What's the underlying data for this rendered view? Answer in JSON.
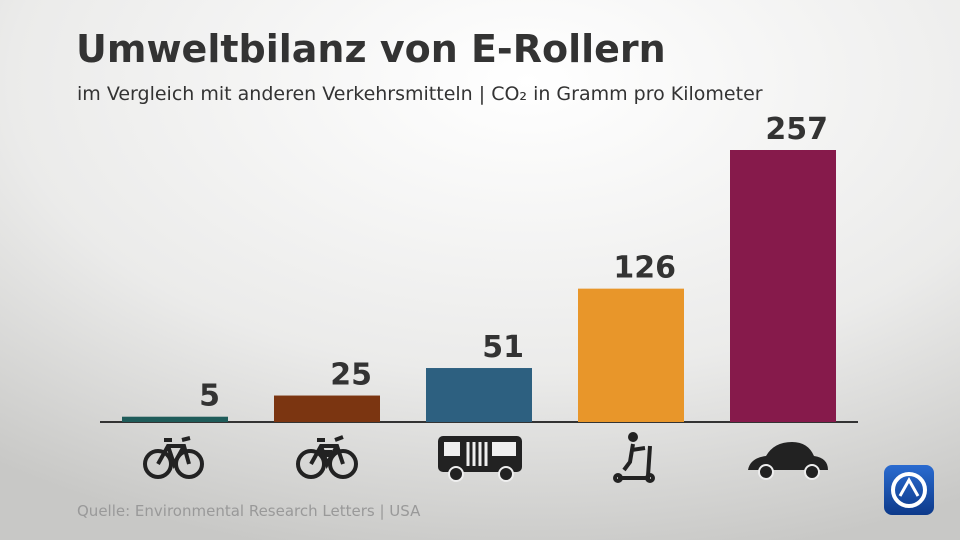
{
  "chart_data": {
    "type": "bar",
    "title": "Umweltbilanz von E-Rollern",
    "subtitle": "im Vergleich mit anderen Verkehrsmitteln | CO₂ in Gramm pro Kilometer",
    "source": "Quelle: Environmental Research Letters | USA",
    "categories": [
      null,
      null,
      null,
      null,
      null
    ],
    "values": [
      5,
      25,
      51,
      126,
      257
    ],
    "colors": [
      "#1f5c5a",
      "#7b3511",
      "#2d6080",
      "#e8962a",
      "#861a4b"
    ]
  }
}
